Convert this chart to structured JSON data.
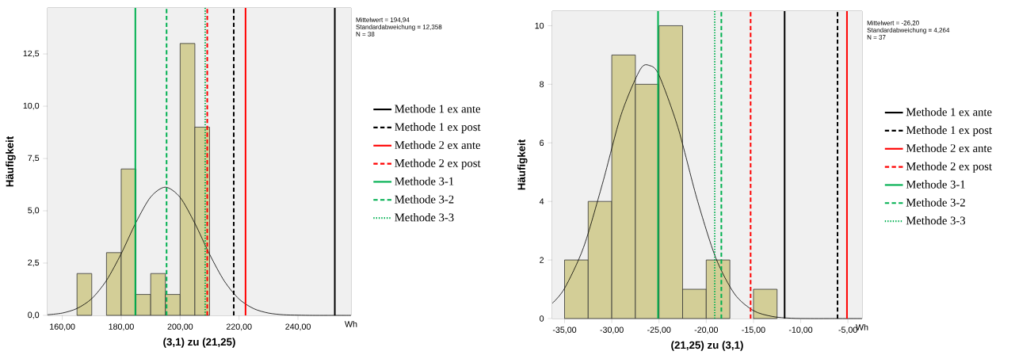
{
  "chart_data": [
    {
      "type": "histogram",
      "xlabel": "(3,1) zu (21,25)",
      "ylabel": "Häufigkeit",
      "color": "#d3ce97",
      "bins": [
        165,
        170,
        175,
        180,
        185,
        190,
        195,
        200,
        205,
        210
      ],
      "values": [
        2,
        0,
        3,
        7,
        1,
        2,
        1,
        13,
        9
      ],
      "series": [
        {
          "type": "line",
          "color": "#000000",
          "x": [
            155,
            160,
            165,
            170,
            175,
            180,
            185,
            190,
            195,
            200,
            205,
            210,
            215,
            220,
            225,
            230,
            235,
            240,
            245,
            250,
            258
          ],
          "values": [
            0.03,
            0.11,
            0.33,
            0.8,
            1.67,
            2.95,
            4.44,
            5.66,
            6.13,
            5.64,
            4.4,
            2.92,
            1.64,
            0.78,
            0.32,
            0.11,
            0.03,
            0.01,
            0,
            0,
            0
          ]
        },
        {
          "type": "line",
          "name": "Methode 1 ex ante",
          "color": "#000000",
          "line_style": "solid",
          "x": [
            252.5,
            252.5
          ],
          "values": [
            0,
            14.7
          ]
        },
        {
          "type": "line",
          "name": "Methode 1 ex post",
          "color": "#000000",
          "line_style": "dashed",
          "x": [
            218.2,
            218.2
          ],
          "values": [
            0,
            14.7
          ]
        },
        {
          "type": "line",
          "name": "Methode 2 ex ante",
          "color": "#ff0000",
          "line_style": "solid",
          "x": [
            222.2,
            222.2
          ],
          "values": [
            0,
            14.7
          ]
        },
        {
          "type": "line",
          "name": "Methode 2 ex post",
          "color": "#ff0000",
          "line_style": "dashed",
          "x": [
            209.2,
            209.2
          ],
          "values": [
            0,
            14.7
          ]
        },
        {
          "type": "line",
          "name": "Methode 3-1",
          "color": "#00b050",
          "line_style": "solid",
          "x": [
            184.8,
            184.8
          ],
          "values": [
            0,
            14.7
          ]
        },
        {
          "type": "line",
          "name": "Methode 3-2",
          "color": "#00b050",
          "line_style": "dashed",
          "x": [
            195.4,
            195.4
          ],
          "values": [
            0,
            14.7
          ]
        },
        {
          "type": "line",
          "name": "Methode 3-3",
          "color": "#00b050",
          "line_style": "dotted",
          "x": [
            208.5,
            208.5
          ],
          "values": [
            0,
            14.7
          ]
        }
      ],
      "xlim": [
        155,
        258
      ],
      "ylim": [
        0,
        14.7
      ],
      "xticks": [
        {
          "value": 160,
          "label": "160,00"
        },
        {
          "value": 180,
          "label": "180,00"
        },
        {
          "value": 200,
          "label": "200,00"
        },
        {
          "value": 220,
          "label": "220,00"
        },
        {
          "value": 240,
          "label": "240,00"
        }
      ],
      "yticks": [
        {
          "value": 0,
          "label": "0,0"
        },
        {
          "value": 2.5,
          "label": "2,5"
        },
        {
          "value": 5,
          "label": "5,0"
        },
        {
          "value": 7.5,
          "label": "7,5"
        },
        {
          "value": 10,
          "label": "10,0"
        },
        {
          "value": 12.5,
          "label": "12,5"
        }
      ],
      "annotations": [
        "Mittelwert = 194,94",
        "Standardabweichung = 12,358",
        "N = 38",
        "Wh"
      ],
      "legend": "right"
    },
    {
      "type": "histogram",
      "xlabel": "(21,25) zu (3,1)",
      "ylabel": "Häufigkeit",
      "color": "#d3ce97",
      "bins": [
        -35,
        -32.5,
        -30,
        -27.5,
        -25,
        -22.5,
        -20,
        -17.5,
        -15,
        -12.5
      ],
      "values": [
        2,
        4,
        9,
        8,
        10,
        1,
        2,
        0,
        1
      ],
      "series": [
        {
          "type": "line",
          "color": "#000000",
          "x": [
            -36.3,
            -35,
            -33,
            -31,
            -29,
            -27,
            -26,
            -25,
            -23,
            -21,
            -19,
            -17,
            -15,
            -13,
            -11,
            -9,
            -7,
            -3.5
          ],
          "values": [
            0.52,
            1.03,
            2.42,
            4.59,
            6.97,
            8.5,
            8.64,
            8.31,
            6.53,
            4.11,
            2.08,
            0.84,
            0.27,
            0.07,
            0.01,
            0,
            0,
            0
          ]
        },
        {
          "type": "line",
          "name": "Methode 1 ex ante",
          "color": "#000000",
          "line_style": "solid",
          "x": [
            -11.7,
            -11.7
          ],
          "values": [
            0,
            10.5
          ]
        },
        {
          "type": "line",
          "name": "Methode 1 ex post",
          "color": "#000000",
          "line_style": "dashed",
          "x": [
            -6.1,
            -6.1
          ],
          "values": [
            0,
            10.5
          ]
        },
        {
          "type": "line",
          "name": "Methode 2 ex ante",
          "color": "#ff0000",
          "line_style": "solid",
          "x": [
            -5.1,
            -5.1
          ],
          "values": [
            0,
            10.5
          ]
        },
        {
          "type": "line",
          "name": "Methode 2 ex post",
          "color": "#ff0000",
          "line_style": "dashed",
          "x": [
            -15.3,
            -15.3
          ],
          "values": [
            0,
            10.5
          ]
        },
        {
          "type": "line",
          "name": "Methode 3-1",
          "color": "#00b050",
          "line_style": "solid",
          "x": [
            -25.1,
            -25.1
          ],
          "values": [
            0,
            10.5
          ]
        },
        {
          "type": "line",
          "name": "Methode 3-2",
          "color": "#00b050",
          "line_style": "dashed",
          "x": [
            -18.4,
            -18.4
          ],
          "values": [
            0,
            10.5
          ]
        },
        {
          "type": "line",
          "name": "Methode 3-3",
          "color": "#00b050",
          "line_style": "dotted",
          "x": [
            -19.1,
            -19.1
          ],
          "values": [
            0,
            10.5
          ]
        }
      ],
      "xlim": [
        -36.3,
        -3.5
      ],
      "ylim": [
        0,
        10.5
      ],
      "xticks": [
        {
          "value": -35,
          "label": "-35,00"
        },
        {
          "value": -30,
          "label": "-30,00"
        },
        {
          "value": -25,
          "label": "-25,00"
        },
        {
          "value": -20,
          "label": "-20,00"
        },
        {
          "value": -15,
          "label": "-15,00"
        },
        {
          "value": -10,
          "label": "-10,00"
        },
        {
          "value": -5,
          "label": "-5,00"
        }
      ],
      "yticks": [
        0,
        2,
        4,
        6,
        8,
        10
      ],
      "annotations": [
        "Mittelwert = -26,20",
        "Standardabweichung = 4,264",
        "N = 37",
        "Wh"
      ],
      "legend": "right"
    }
  ]
}
